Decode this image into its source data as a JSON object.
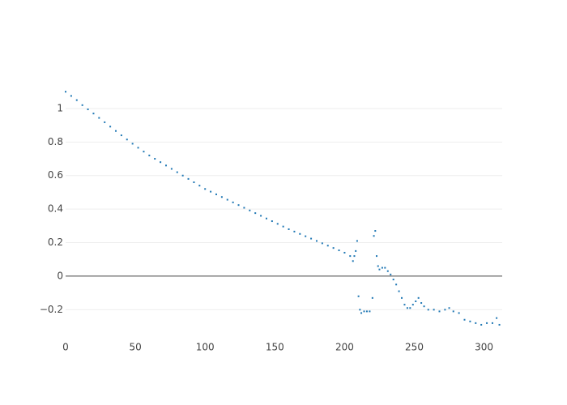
{
  "chart_data": {
    "type": "scatter",
    "x": [
      0,
      4,
      8,
      12,
      16,
      20,
      24,
      28,
      32,
      36,
      40,
      44,
      48,
      52,
      56,
      60,
      64,
      68,
      72,
      76,
      80,
      84,
      88,
      92,
      96,
      100,
      104,
      108,
      112,
      116,
      120,
      124,
      128,
      132,
      136,
      140,
      144,
      148,
      152,
      156,
      160,
      164,
      168,
      172,
      176,
      180,
      184,
      188,
      192,
      196,
      200,
      204,
      206,
      207,
      208,
      209,
      210,
      211,
      212,
      214,
      216,
      218,
      220,
      221,
      222,
      223,
      224,
      225,
      227,
      229,
      231,
      233,
      235,
      237,
      239,
      241,
      243,
      245,
      247,
      249,
      251,
      253,
      255,
      257,
      260,
      264,
      268,
      272,
      275,
      278,
      282,
      286,
      290,
      294,
      298,
      302,
      306,
      309,
      311
    ],
    "series": [
      {
        "color": "#1f77b4",
        "values": [
          1.1,
          1.075,
          1.05,
          1.02,
          0.995,
          0.97,
          0.944,
          0.918,
          0.892,
          0.866,
          0.84,
          0.815,
          0.79,
          0.766,
          0.743,
          0.72,
          0.7,
          0.68,
          0.66,
          0.64,
          0.62,
          0.6,
          0.58,
          0.56,
          0.54,
          0.52,
          0.504,
          0.488,
          0.472,
          0.456,
          0.44,
          0.424,
          0.408,
          0.392,
          0.376,
          0.36,
          0.344,
          0.328,
          0.312,
          0.296,
          0.28,
          0.266,
          0.252,
          0.238,
          0.224,
          0.21,
          0.196,
          0.182,
          0.168,
          0.154,
          0.14,
          0.12,
          0.09,
          0.12,
          0.15,
          0.21,
          -0.12,
          -0.2,
          -0.22,
          -0.21,
          -0.21,
          -0.21,
          -0.13,
          0.24,
          0.27,
          0.12,
          0.06,
          0.04,
          0.05,
          0.05,
          0.03,
          0.01,
          -0.02,
          -0.05,
          -0.09,
          -0.13,
          -0.17,
          -0.19,
          -0.19,
          -0.17,
          -0.15,
          -0.13,
          -0.16,
          -0.18,
          -0.2,
          -0.2,
          -0.21,
          -0.2,
          -0.19,
          -0.21,
          -0.22,
          -0.26,
          -0.27,
          -0.28,
          -0.29,
          -0.28,
          -0.28,
          -0.25,
          -0.29
        ]
      }
    ],
    "xlim": [
      0,
      313
    ],
    "ylim": [
      -0.382,
      1.164
    ],
    "xticks": [
      0,
      50,
      100,
      150,
      200,
      250,
      300
    ],
    "yticks": [
      {
        "value": -0.2,
        "label": "−0.2"
      },
      0,
      0.2,
      0.4,
      0.6,
      0.8,
      1
    ],
    "grid": true
  }
}
